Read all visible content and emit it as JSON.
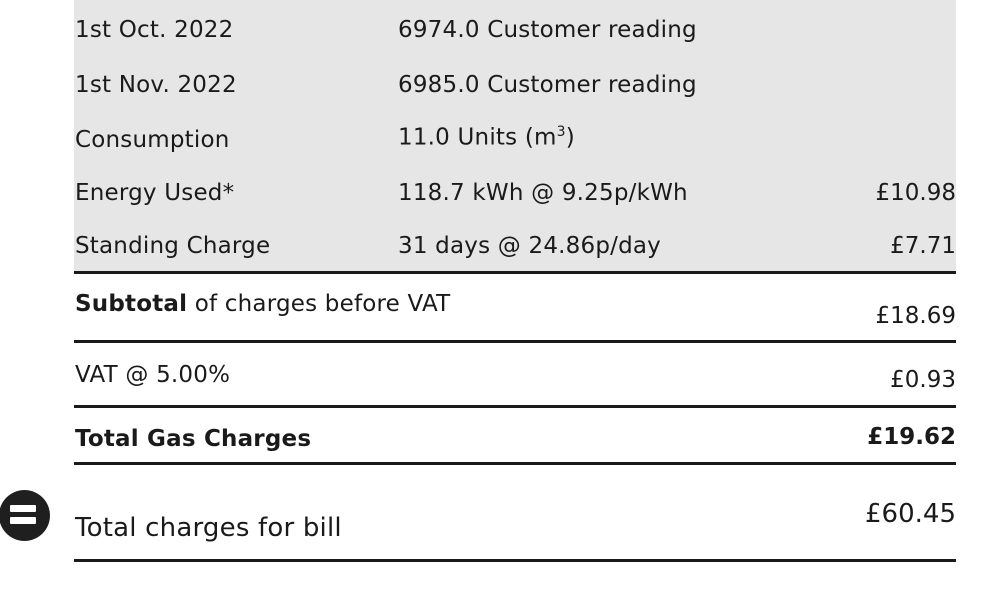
{
  "readings": [
    {
      "label": "1st Oct. 2022",
      "detail": "6974.0 Customer reading",
      "amount": ""
    },
    {
      "label": "1st Nov. 2022",
      "detail": "6985.0 Customer reading",
      "amount": ""
    },
    {
      "label": "Consumption",
      "detail": "11.0 Units (m",
      "detail_sup": "3",
      "detail_end": ")",
      "amount": ""
    },
    {
      "label": "Energy Used*",
      "detail": "118.7 kWh @ 9.25p/kWh",
      "amount": "£10.98"
    },
    {
      "label": "Standing Charge",
      "detail": "31 days @ 24.86p/day",
      "amount": "£7.71"
    }
  ],
  "subtotal": {
    "label_bold": "Subtotal",
    "label_rest": " of charges before VAT",
    "amount": "£18.69"
  },
  "vat": {
    "label": "VAT @ 5.00%",
    "amount": "£0.93"
  },
  "total_gas": {
    "label": "Total Gas Charges",
    "amount": "£19.62"
  },
  "total_bill": {
    "icon": "equals-icon",
    "label": "Total charges for bill",
    "amount": "£60.45"
  }
}
